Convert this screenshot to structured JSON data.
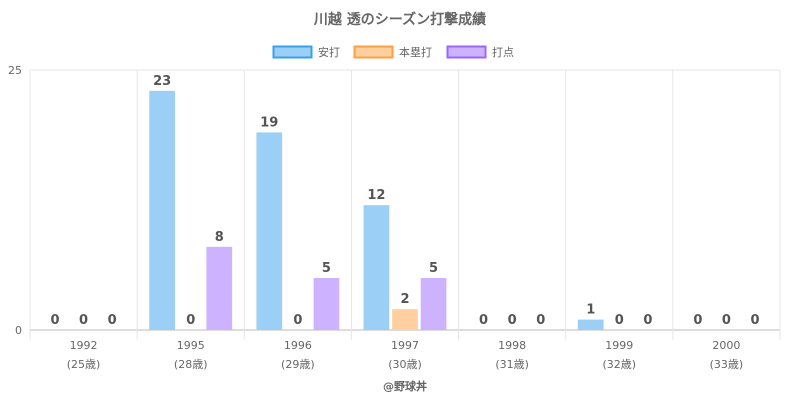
{
  "chart_data": {
    "type": "bar",
    "title": "川越 透のシーズン打撃成績",
    "categories": [
      "1992",
      "1995",
      "1996",
      "1997",
      "1998",
      "1999",
      "2000"
    ],
    "category_sublabels": [
      "(25歳)",
      "(28歳)",
      "(29歳)",
      "(30歳)",
      "(31歳)",
      "(32歳)",
      "(33歳)"
    ],
    "series": [
      {
        "name": "安打",
        "values": [
          0,
          23,
          19,
          12,
          0,
          1,
          0
        ],
        "fill": "#9ccff5",
        "stroke": "#36a2eb"
      },
      {
        "name": "本塁打",
        "values": [
          0,
          0,
          0,
          2,
          0,
          0,
          0
        ],
        "fill": "#ffcf9f",
        "stroke": "#ff9f40"
      },
      {
        "name": "打点",
        "values": [
          0,
          8,
          5,
          5,
          0,
          0,
          0
        ],
        "fill": "#cdb3ff",
        "stroke": "#9966ff"
      }
    ],
    "ylim": [
      0,
      25
    ],
    "yticks": [
      "0",
      "25"
    ],
    "grid": true,
    "legend": "top-center",
    "credit": "@野球丼"
  }
}
